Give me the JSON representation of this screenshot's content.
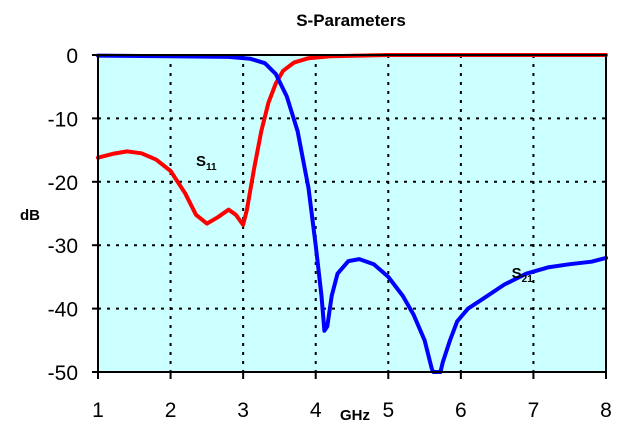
{
  "chart_data": {
    "type": "line",
    "title": "S-Parameters",
    "xlabel": "GHz",
    "ylabel": "dB",
    "xlim": [
      1,
      8
    ],
    "ylim": [
      -50,
      0
    ],
    "x_ticks": [
      "1",
      "2",
      "3",
      "4",
      "5",
      "6",
      "7",
      "8"
    ],
    "y_ticks": [
      "0",
      "-10",
      "-20",
      "-30",
      "-40",
      "-50"
    ],
    "grid": true,
    "plot_background": "#ccffff",
    "annotations": [
      {
        "label_main": "S",
        "label_sub": "11",
        "x": 2.35,
        "y": -17.5
      },
      {
        "label_main": "S",
        "label_sub": "21",
        "x": 6.7,
        "y": -35.2
      }
    ],
    "series": [
      {
        "name": "S11",
        "color": "#ff0000",
        "points": [
          [
            1.0,
            -16.2
          ],
          [
            1.2,
            -15.6
          ],
          [
            1.4,
            -15.2
          ],
          [
            1.6,
            -15.5
          ],
          [
            1.8,
            -16.5
          ],
          [
            2.0,
            -18.3
          ],
          [
            2.2,
            -21.8
          ],
          [
            2.35,
            -25.2
          ],
          [
            2.5,
            -26.6
          ],
          [
            2.65,
            -25.6
          ],
          [
            2.8,
            -24.4
          ],
          [
            2.9,
            -25.2
          ],
          [
            3.0,
            -26.8
          ],
          [
            3.05,
            -24.5
          ],
          [
            3.15,
            -18.0
          ],
          [
            3.25,
            -12.0
          ],
          [
            3.35,
            -7.5
          ],
          [
            3.45,
            -4.5
          ],
          [
            3.55,
            -2.5
          ],
          [
            3.7,
            -1.2
          ],
          [
            3.9,
            -0.5
          ],
          [
            4.2,
            -0.2
          ],
          [
            5.0,
            0.0
          ],
          [
            6.0,
            0.0
          ],
          [
            7.0,
            0.0
          ],
          [
            8.0,
            0.0
          ]
        ]
      },
      {
        "name": "S21",
        "color": "#0000ff",
        "points": [
          [
            1.0,
            -0.1
          ],
          [
            2.0,
            -0.2
          ],
          [
            2.8,
            -0.3
          ],
          [
            3.1,
            -0.6
          ],
          [
            3.3,
            -1.3
          ],
          [
            3.45,
            -3.0
          ],
          [
            3.6,
            -6.5
          ],
          [
            3.75,
            -12.0
          ],
          [
            3.9,
            -21.0
          ],
          [
            4.0,
            -30.0
          ],
          [
            4.08,
            -38.0
          ],
          [
            4.12,
            -43.5
          ],
          [
            4.16,
            -42.8
          ],
          [
            4.22,
            -38.0
          ],
          [
            4.3,
            -34.5
          ],
          [
            4.45,
            -32.5
          ],
          [
            4.6,
            -32.2
          ],
          [
            4.8,
            -33.0
          ],
          [
            5.0,
            -35.0
          ],
          [
            5.2,
            -38.0
          ],
          [
            5.35,
            -41.0
          ],
          [
            5.5,
            -45.0
          ],
          [
            5.6,
            -49.5
          ],
          [
            5.62,
            -50.0
          ],
          [
            5.72,
            -50.0
          ],
          [
            5.75,
            -48.5
          ],
          [
            5.85,
            -45.0
          ],
          [
            5.95,
            -42.0
          ],
          [
            6.1,
            -40.0
          ],
          [
            6.3,
            -38.5
          ],
          [
            6.6,
            -36.2
          ],
          [
            6.9,
            -34.5
          ],
          [
            7.2,
            -33.5
          ],
          [
            7.5,
            -33.0
          ],
          [
            7.8,
            -32.6
          ],
          [
            8.0,
            -32.0
          ]
        ]
      }
    ]
  }
}
